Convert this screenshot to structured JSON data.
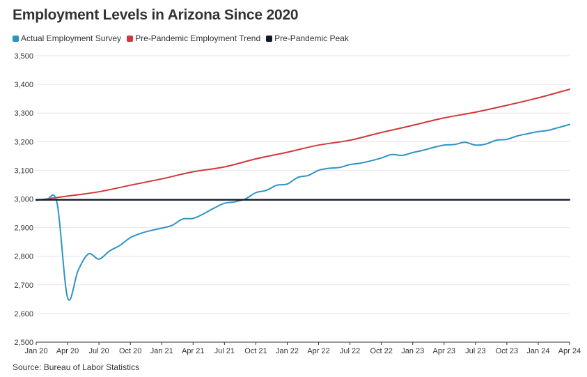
{
  "title": "Employment Levels in Arizona Since 2020",
  "source": "Source: Bureau of Labor Statistics",
  "chart_data": {
    "type": "line",
    "title": "Employment Levels in Arizona Since 2020",
    "xlabel": "",
    "ylabel": "",
    "ylim": [
      2500,
      3500
    ],
    "yticks": [
      2500,
      2600,
      2700,
      2800,
      2900,
      3000,
      3100,
      3200,
      3300,
      3400,
      3500
    ],
    "ytick_labels": [
      "2,500",
      "2,600",
      "2,700",
      "2,800",
      "2,900",
      "3,000",
      "3,100",
      "3,200",
      "3,300",
      "3,400",
      "3,500"
    ],
    "xticks": [
      "Jan 20",
      "Apr 20",
      "Jul 20",
      "Oct 20",
      "Jan 21",
      "Apr 21",
      "Jul 21",
      "Oct 21",
      "Jan 22",
      "Apr 22",
      "Jul 22",
      "Oct 22",
      "Jan 23",
      "Apr 23",
      "Jul 23",
      "Oct 23",
      "Jan 24",
      "Apr 24"
    ],
    "grid": true,
    "legend_position": "top-left",
    "series": [
      {
        "name": "Actual Employment Survey",
        "color": "#2e93c4",
        "x": [
          "Jan 20",
          "Feb 20",
          "Mar 20",
          "Apr 20",
          "May 20",
          "Jun 20",
          "Jul 20",
          "Aug 20",
          "Sep 20",
          "Oct 20",
          "Nov 20",
          "Dec 20",
          "Jan 21",
          "Feb 21",
          "Mar 21",
          "Apr 21",
          "May 21",
          "Jun 21",
          "Jul 21",
          "Aug 21",
          "Sep 21",
          "Oct 21",
          "Nov 21",
          "Dec 21",
          "Jan 22",
          "Feb 22",
          "Mar 22",
          "Apr 22",
          "May 22",
          "Jun 22",
          "Jul 22",
          "Aug 22",
          "Sep 22",
          "Oct 22",
          "Nov 22",
          "Dec 22",
          "Jan 23",
          "Feb 23",
          "Mar 23",
          "Apr 23",
          "May 23",
          "Jun 23",
          "Jul 23",
          "Aug 23",
          "Sep 23",
          "Oct 23",
          "Nov 23",
          "Dec 23",
          "Jan 24",
          "Feb 24",
          "Mar 24",
          "Apr 24"
        ],
        "values": [
          2995,
          2998,
          2985,
          2655,
          2750,
          2808,
          2790,
          2818,
          2838,
          2865,
          2880,
          2890,
          2898,
          2908,
          2930,
          2932,
          2948,
          2968,
          2985,
          2990,
          3000,
          3022,
          3030,
          3048,
          3052,
          3075,
          3082,
          3100,
          3107,
          3110,
          3120,
          3125,
          3133,
          3143,
          3155,
          3152,
          3162,
          3170,
          3180,
          3188,
          3190,
          3198,
          3188,
          3192,
          3205,
          3208,
          3220,
          3228,
          3235,
          3240,
          3250,
          3260
        ]
      },
      {
        "name": "Pre-Pandemic Employment Trend",
        "color": "#d0383a",
        "x": [
          "Jan 20",
          "Apr 20",
          "Jul 20",
          "Oct 20",
          "Jan 21",
          "Apr 21",
          "Jul 21",
          "Oct 21",
          "Jan 22",
          "Apr 22",
          "Jul 22",
          "Oct 22",
          "Jan 23",
          "Apr 23",
          "Jul 23",
          "Oct 23",
          "Jan 24",
          "Apr 24"
        ],
        "values": [
          2995,
          3010,
          3025,
          3048,
          3070,
          3095,
          3112,
          3140,
          3163,
          3188,
          3205,
          3232,
          3257,
          3283,
          3303,
          3327,
          3353,
          3383
        ]
      },
      {
        "name": "Pre-Pandemic Peak",
        "color": "#111827",
        "x": [
          "Jan 20",
          "Apr 24"
        ],
        "values": [
          2997,
          2997
        ]
      }
    ]
  }
}
